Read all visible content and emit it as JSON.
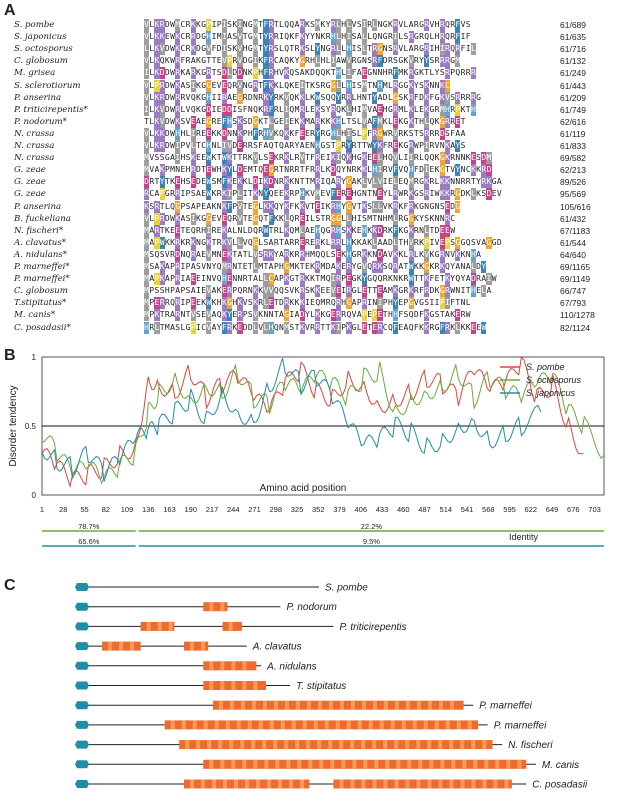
{
  "panel_labels": {
    "a": "A",
    "b": "B",
    "c": "C"
  },
  "panelA": {
    "rows": [
      {
        "species": "S. pombe",
        "seq": "VLKRDWMCRKKGPIPISKINGMTFRTLQQARKSMKYRLHLVSIRLNGKRVLARGRVHRQRFVS",
        "pos": "61/689"
      },
      {
        "species": "S. japonicus",
        "seq": "VLKKEWKCRRDGHIMIASVTGMTYRRIQKFKYYNKRHLHISALLQNGRILSRGRQLHRQRFIF",
        "pos": "61/635"
      },
      {
        "species": "S. octosporus",
        "seq": "LLKVDWKCRKDGVFDISKVHGMTYRSLQTRKSLYNGRLLHISLTRGNSRVLARGRIHIRQRFIL",
        "pos": "61/716"
      },
      {
        "species": "C. globosum",
        "seq": "VLKQKWRFRAKGTTEVPRVDGIKFRCAQKYGRHLHLIAWVRGNSRFDRSGKVRYYSRRRGM",
        "pos": "61/132"
      },
      {
        "species": "M. grisea",
        "seq": "ILKDDWRKARKGRTSDLDDNKPHFRHVKQSAKDQQKTHLIFAEGNNHRFMKRGKTLYSRPQRRR",
        "pos": "61/249"
      },
      {
        "species": "S. sclerotiorum",
        "seq": "VLPRDWKASIKGGEVEQRVNGRTFKKLQKEITKSRGGLLHISMTNHMLRGGKYSKNNKC",
        "pos": "61/443"
      },
      {
        "species": "P. anserina",
        "seq": "VLKRDWRRVQKGHIIRAEGRDNRKYRKVQKKLKWSQQYRRLHNTYADLGSKRFDKFGKVSRRRRG",
        "pos": "61/209"
      },
      {
        "species": "P. triticirepentis*",
        "seq": "ILKVDWRLVQKGDIEDDISFNQKRFRLIQMRLEKSYRQKLHIMVAEHGRMLKLEKGRMHRPKTH",
        "pos": "61/749"
      },
      {
        "species": "P. nodorum*",
        "seq": "TLKVDWKSVEAEGREFHSKSDGKTLGEIEKKMARKKKHLTSLVAFMKLEKGKTHLQKGRRET",
        "pos": "62/616"
      },
      {
        "species": "N. crassa",
        "seq": "VLKKDWHHLIREEKKDNNKPHFRHVKQKKFEERYRGHLHISLPFRGWRVRKSTSRRRDSFAA",
        "pos": "61/119"
      },
      {
        "species": "N. crassa",
        "seq": "VLKRDWIPVLTCHNLIVDERRSFAQTQARYAENHGSTPRYRTTWYKFREKGRWPIRVNKAYS",
        "pos": "61/833"
      },
      {
        "species": "N. crassa",
        "seq": "MVSSGAIHSKEEWKTWKTTRKVLSEKRKLRVTFREIKIQKHGKEELHQVLIIRLQQKGKRNNKESDM",
        "pos": "69/582"
      },
      {
        "species": "G. zeae",
        "seq": "MVAKPMNEHRDTEWHKYLDEMTQEGRTNRRTFRRLKDQYNRKKLHIRVFVQHFDIEKGTVYNCKKRD",
        "pos": "62/213"
      },
      {
        "species": "G. zeae",
        "seq": "DRTYTKEHSEDEWSMFKEKKLDIKDNRKKNTTMRIQARYGAKLVLVIELEQMRGKRLKKNNRRTYRKGA",
        "pos": "89/526"
      },
      {
        "species": "G. zeae",
        "seq": "RCAPGRRIPSAEWKRKIPLITKNYQEEKRPHKVMEVFEREHGNTNEYLRWRKGSRIWKKRGDKLKSDEV",
        "pos": "95/569"
      },
      {
        "species": "P. anserina",
        "seq": "KSRTLQGPSAPEAKNKFPVTEGLKKQYKFKKVTEIKRHYGVTKSLLVKRKFRKGNGNSEDG",
        "pos": "105/616"
      },
      {
        "species": "B. fuckeliana",
        "seq": "VLPRDWKASIKGGEVEQRVTEGQTFKKLQREILSTRGGLLHISMTNHMLRGGKYSKNNRC",
        "pos": "61/432"
      },
      {
        "species": "N. fischeri*",
        "seq": "MARTKEETEQRHIREKALNLDQRWTRLKQMLAEHQGRHSKKEHKKDRKFKGKRNLTDEEW",
        "pos": "67/1183"
      },
      {
        "species": "A. clavatus*",
        "seq": "MAPWKKRKRKNGKTRKVLLVQGLSARTARRERERKLRRLHKKAKLAADLTHVRKPIVEPSGGQSVAGGD",
        "pos": "61/544"
      },
      {
        "species": "A. nidulans*",
        "seq": "MSQSVRDNQRAEVMNEKTATLVSRKYARKRRHMQQLSEKHGRKKNDAVKKLRLKVKGRNVKKNHA",
        "pos": "64/640"
      },
      {
        "species": "P. marneffei*",
        "seq": "MSAKAPRIPASVNYQMRNTETLMTAPHGMKTEKRMDAKERYGVQRKSQRATWKKGKRKQYANALDY",
        "pos": "69/1165"
      },
      {
        "species": "P. marneffei*",
        "seq": "MAPKAPRIAEEINVQHENNRTALLCAPKGTRKKTMQIRPEGKYGQQRKNKRWTTKFETKYQYADRAIW",
        "pos": "69/1149"
      },
      {
        "species": "C. globosum",
        "seq": "MPSSHPAPSAIEVAKERPQRNKKVVQQSVKRSKKEEVEIRGLETTEAMKGRKRFRDKGRWNITHELA",
        "pos": "66/747"
      },
      {
        "species": "T.stipitatus*",
        "seq": "MPERRQRIPEEKWKHKGHKVSKRLETDRKKKIEQMRQRHGAPRINIPHYEPGVGSIIPIFTNL",
        "pos": "67/793"
      },
      {
        "species": "M. canis*",
        "seq": "MPKTRARNTVSEVAQKYERPSVKNNTAGIADYLKKGERRQVAPEPETHHFSQDFKGSTAKERW",
        "pos": "110/1278"
      },
      {
        "species": "C. posadasii*",
        "seq": "HRLTMASLGPICVAYFRKEDDLVLHQNMSTKVRRTTKIPKGLETERCQFEAQFKKRGFRKLKKEEW",
        "pos": "82/1124"
      }
    ]
  },
  "panelB": {
    "chart_data": {
      "type": "line",
      "ylabel": "Disorder tendency",
      "xlabel": "Amino acid position",
      "ylim": [
        0,
        1
      ],
      "xlim": [
        1,
        715
      ],
      "yticks": [
        "0",
        "0.5",
        "1"
      ],
      "xticks": [
        "1",
        "28",
        "55",
        "82",
        "109",
        "136",
        "163",
        "190",
        "217",
        "244",
        "271",
        "298",
        "325",
        "352",
        "379",
        "406",
        "433",
        "460",
        "487",
        "514",
        "541",
        "568",
        "595",
        "622",
        "649",
        "676",
        "703"
      ],
      "threshold": 0.5,
      "series": [
        {
          "name": "S. pombe",
          "color": "#e0443c",
          "x": [
            1,
            20,
            40,
            60,
            80,
            100,
            120,
            136,
            150,
            170,
            190,
            210,
            230,
            250,
            270,
            290,
            310,
            330,
            350,
            370,
            390,
            410,
            430,
            450,
            470,
            490,
            510,
            530,
            550,
            570,
            590,
            610,
            630,
            650,
            670,
            689
          ],
          "y": [
            0.3,
            0.2,
            0.1,
            0.15,
            0.2,
            0.3,
            0.35,
            0.85,
            0.8,
            0.75,
            0.9,
            0.7,
            0.8,
            0.85,
            0.7,
            0.6,
            0.8,
            0.9,
            0.75,
            0.7,
            0.85,
            0.8,
            0.65,
            0.7,
            0.75,
            0.85,
            0.8,
            0.7,
            0.9,
            0.75,
            0.8,
            0.95,
            0.7,
            0.8,
            0.5,
            0.3
          ]
        },
        {
          "name": "S. octosporus",
          "color": "#6aaa3c",
          "x": [
            1,
            20,
            40,
            60,
            80,
            100,
            120,
            136,
            150,
            170,
            190,
            210,
            230,
            250,
            270,
            290,
            310,
            330,
            350,
            370,
            390,
            410,
            430,
            450,
            470,
            490,
            510,
            530,
            550,
            570,
            590,
            610,
            630,
            650,
            670,
            690,
            716
          ],
          "y": [
            0.45,
            0.3,
            0.15,
            0.2,
            0.1,
            0.2,
            0.3,
            0.6,
            0.75,
            0.85,
            0.7,
            0.8,
            0.75,
            0.9,
            0.7,
            0.65,
            0.8,
            0.75,
            0.85,
            0.8,
            0.7,
            0.85,
            0.9,
            0.6,
            0.7,
            0.75,
            0.8,
            0.9,
            0.7,
            0.85,
            0.75,
            0.7,
            0.8,
            0.85,
            0.6,
            0.5,
            0.3
          ]
        },
        {
          "name": "S. japonicus",
          "color": "#1f8ea6",
          "x": [
            1,
            20,
            40,
            60,
            80,
            100,
            120,
            136,
            150,
            170,
            190,
            210,
            230,
            250,
            270,
            290,
            310,
            330,
            350,
            370,
            390,
            410,
            430,
            450,
            470,
            490,
            510,
            530,
            550,
            570,
            590,
            610,
            635
          ],
          "y": [
            0.35,
            0.25,
            0.2,
            0.3,
            0.15,
            0.25,
            0.4,
            0.45,
            0.5,
            0.6,
            0.7,
            0.55,
            0.75,
            0.6,
            0.55,
            0.8,
            0.95,
            0.8,
            0.85,
            0.7,
            0.5,
            0.35,
            0.4,
            0.5,
            0.45,
            0.35,
            0.4,
            0.5,
            0.55,
            0.4,
            0.45,
            0.5,
            0.6
          ]
        }
      ],
      "identity": {
        "label": "Identity",
        "rows": [
          {
            "color": "#6aaa3c",
            "segments": [
              {
                "from": 1,
                "to": 120,
                "label": "78.7%"
              },
              {
                "from": 124,
                "to": 715,
                "label": "22.2%"
              }
            ]
          },
          {
            "color": "#1f8ea6",
            "segments": [
              {
                "from": 1,
                "to": 120,
                "label": "65.6%"
              },
              {
                "from": 124,
                "to": 715,
                "label": "9.5%"
              }
            ]
          }
        ]
      },
      "legend": "top-right"
    }
  },
  "panelC": {
    "rows": [
      {
        "species": "S. pombe",
        "line_end": 0.5,
        "domains": []
      },
      {
        "species": "P. nodorum",
        "line_end": 0.42,
        "domains": [
          [
            0.26,
            0.31
          ]
        ]
      },
      {
        "species": "P. triticirepentis",
        "line_end": 0.53,
        "domains": [
          [
            0.13,
            0.2
          ],
          [
            0.3,
            0.34
          ]
        ]
      },
      {
        "species": "A. clavatus",
        "line_end": 0.35,
        "domains": [
          [
            0.05,
            0.13
          ],
          [
            0.22,
            0.27
          ]
        ]
      },
      {
        "species": "A. nidulans",
        "line_end": 0.38,
        "domains": [
          [
            0.26,
            0.37
          ]
        ]
      },
      {
        "species": "T. stipitatus",
        "line_end": 0.44,
        "domains": [
          [
            0.26,
            0.39
          ]
        ]
      },
      {
        "species": "P. marneffei",
        "line_end": 0.82,
        "domains": [
          [
            0.28,
            0.8
          ]
        ]
      },
      {
        "species": "P. marneffei",
        "line_end": 0.85,
        "domains": [
          [
            0.18,
            0.83
          ]
        ]
      },
      {
        "species": "N. fischeri",
        "line_end": 0.88,
        "domains": [
          [
            0.21,
            0.86
          ]
        ]
      },
      {
        "species": "M. canis",
        "line_end": 0.95,
        "domains": [
          [
            0.26,
            0.93
          ]
        ]
      },
      {
        "species": "C. posadasii",
        "line_end": 0.93,
        "domains": [
          [
            0.22,
            0.48
          ],
          [
            0.53,
            0.9
          ]
        ]
      }
    ]
  },
  "colors": {
    "domain_orange": "#ef6a2e",
    "domain_light": "#f5a35f",
    "hexagon": "#1f8ea6"
  }
}
